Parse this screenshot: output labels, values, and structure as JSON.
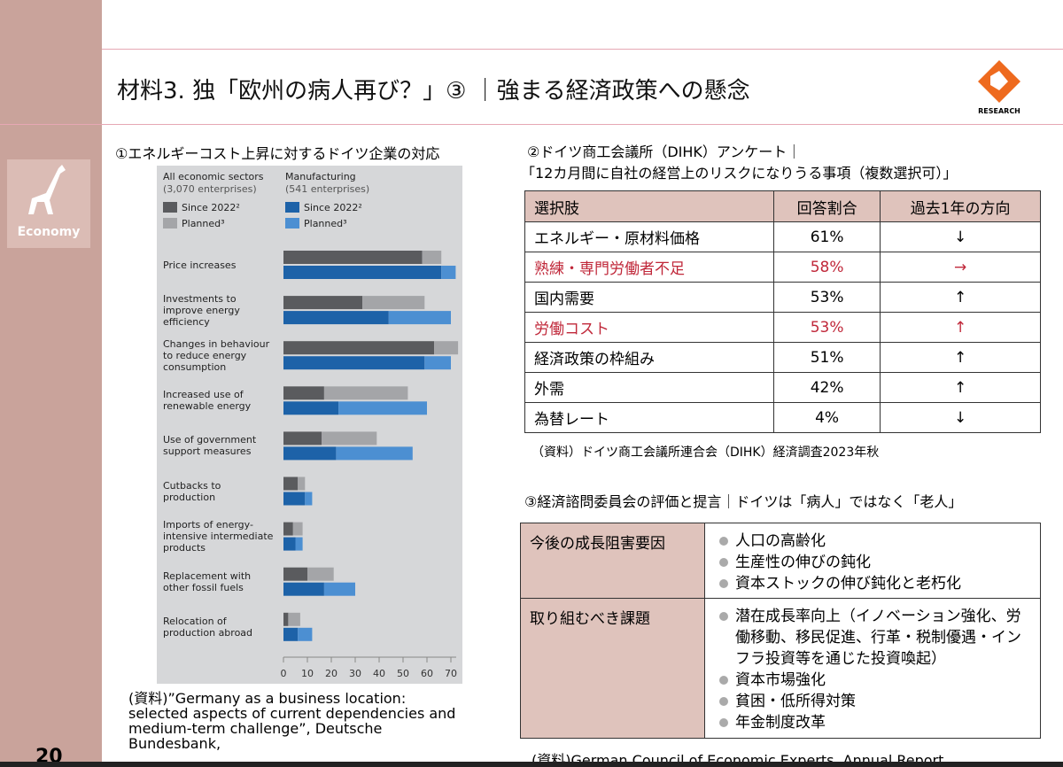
{
  "header": {
    "title": "材料3. 独「欧州の病人再び？」③ ｜強まる経済政策への懸念",
    "logo": "RESEARCH"
  },
  "sidebar": {
    "label": "Economy"
  },
  "section1": {
    "title": "①エネルギーコスト上昇に対するドイツ企業の対応",
    "source": "(資料)”Germany as a business location: selected aspects of current dependencies and medium-term challenge”, Deutsche Bundesbank,"
  },
  "chart_data": {
    "type": "stacked-hbar",
    "categories": [
      "Price increases",
      "Investments to improve energy efficiency",
      "Changes in behaviour to reduce energy consumption",
      "Increased use of renewable energy",
      "Use of government support measures",
      "Cutbacks to production",
      "Imports of energy-intensive intermediate products",
      "Replacement with other fossil fuels",
      "Relocation of production abroad"
    ],
    "groups": [
      {
        "title": "All economic sectors",
        "subtitle": "(3,070 enterprises)",
        "series": [
          {
            "name": "Since 2022²",
            "color": "#5a5b5e",
            "values": [
              58,
              33,
              63,
              17,
              16,
              6,
              4,
              10,
              2
            ]
          },
          {
            "name": "Planned³",
            "color": "#a4a5a8",
            "values": [
              8,
              26,
              10,
              35,
              23,
              3,
              4,
              11,
              5
            ]
          }
        ]
      },
      {
        "title": "Manufacturing",
        "subtitle": "(541 enterprises)",
        "series": [
          {
            "name": "Since 2022²",
            "color": "#1d62a8",
            "values": [
              66,
              44,
              59,
              23,
              22,
              9,
              5,
              17,
              6
            ]
          },
          {
            "name": "Planned³",
            "color": "#4c8fd2",
            "values": [
              6,
              26,
              11,
              37,
              32,
              3,
              3,
              13,
              6
            ]
          }
        ]
      }
    ],
    "xlim": [
      0,
      70
    ],
    "xticks": [
      0,
      10,
      20,
      30,
      40,
      50,
      60,
      70
    ]
  },
  "section2": {
    "title": [
      "②ドイツ商工会議所（DIHK）アンケート｜",
      "「12カ月間に自社の経営上のリスクになりうる事項（複数選択可）」"
    ],
    "table": {
      "header": [
        "選択肢",
        "回答割合",
        "過去1年の方向"
      ],
      "rows": [
        [
          "エネルギー・原材料価格",
          "61%",
          "↓"
        ],
        [
          "熟練・専門労働者不足",
          "58%",
          "→"
        ],
        [
          "国内需要",
          "53%",
          "↑"
        ],
        [
          "労働コスト",
          "53%",
          "↑"
        ],
        [
          "経済政策の枠組み",
          "51%",
          "↑"
        ],
        [
          "外需",
          "42%",
          "↑"
        ],
        [
          "為替レート",
          "4%",
          "↓"
        ]
      ]
    },
    "source": "（資料）ドイツ商工会議所連合会（DIHK）経済調査2023年秋"
  },
  "section3": {
    "title": "③経済諮問委員会の評価と提言｜ドイツは「病人」ではなく「老人」",
    "table": {
      "rows": [
        {
          "label": "今後の成長阻害要因",
          "items": [
            "人口の高齢化",
            "生産性の伸びの鈍化",
            "資本ストックの伸び鈍化と老朽化"
          ]
        },
        {
          "label": "取り組むべき課題",
          "items": [
            "潜在成長率向上（イノベーション強化、労働移動、移民促進、行革・税制優遇・インフラ投資等を通じた投資喚起）",
            "資本市場強化",
            "貧困・低所得対策",
            "年金制度改革"
          ]
        }
      ]
    },
    "source": "(資料)German Council of Economic Experts  Annual Report"
  },
  "footer": {
    "page": "20"
  }
}
